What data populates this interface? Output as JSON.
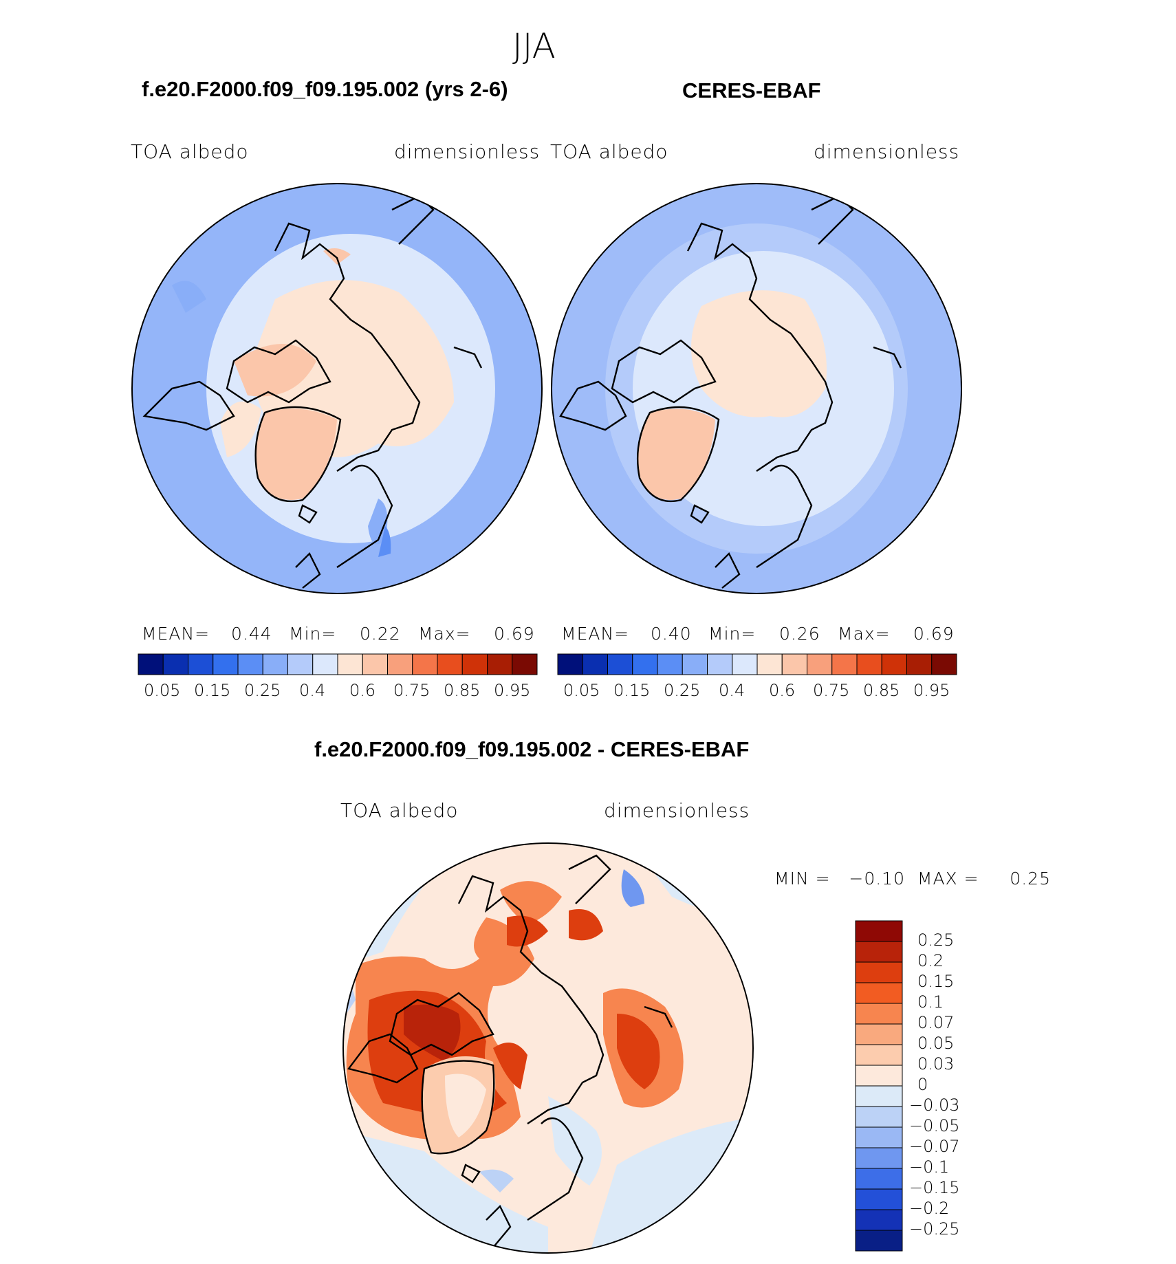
{
  "title": "JJA",
  "panels": [
    {
      "id": "model",
      "header": "f.e20.F2000.f09_f09.195.002 (yrs 2-6)",
      "left_label": "TOA  albedo",
      "right_label": "dimensionless",
      "mean_label": "MEAN=",
      "mean_value": "0.44",
      "min_label": "Min=",
      "min_value": "0.22",
      "max_label": "Max=",
      "max_value": "0.69",
      "colorbar_ticks": [
        "0.05",
        "0.15",
        "0.25",
        "0.4",
        "0.6",
        "0.75",
        "0.85",
        "0.95"
      ]
    },
    {
      "id": "obs",
      "header": "CERES-EBAF",
      "left_label": "TOA  albedo",
      "right_label": "dimensionless",
      "mean_label": "MEAN=",
      "mean_value": "0.40",
      "min_label": "Min=",
      "min_value": "0.26",
      "max_label": "Max=",
      "max_value": "0.69",
      "colorbar_ticks": [
        "0.05",
        "0.15",
        "0.25",
        "0.4",
        "0.6",
        "0.75",
        "0.85",
        "0.95"
      ]
    }
  ],
  "diff": {
    "header": "f.e20.F2000.f09_f09.195.002 - CERES-EBAF",
    "left_label": "TOA  albedo",
    "right_label": "dimensionless",
    "minmax_text": "MIN =   −0.10  MAX =     0.25",
    "colorbar_labels": [
      "0.25",
      "0.2",
      "0.15",
      "0.1",
      "0.07",
      "0.05",
      "0.03",
      "0",
      "−0.03",
      "−0.05",
      "−0.07",
      "−0.1",
      "−0.15",
      "−0.2",
      "−0.25"
    ]
  },
  "colors": {
    "abs_scale": [
      "#00107a",
      "#0a2fb0",
      "#1c4fd6",
      "#3370ee",
      "#5b8ef5",
      "#89aef8",
      "#b4cbfa",
      "#dce8fc",
      "#fde5d4",
      "#fbc6aa",
      "#f8a07c",
      "#f47549",
      "#e84e1e",
      "#cf3208",
      "#a81e04",
      "#7a0a03"
    ],
    "diff_scale": [
      "#8f0905",
      "#b8230a",
      "#dd3e0f",
      "#f25c22",
      "#f7854f",
      "#f9a97e",
      "#fcccae",
      "#fde9dc",
      "#dceaf8",
      "#bcd2f6",
      "#9ab8f4",
      "#6f97f0",
      "#3d6ee8",
      "#2350d8",
      "#1432b6",
      "#091f86"
    ],
    "land_outline": "#000000"
  }
}
